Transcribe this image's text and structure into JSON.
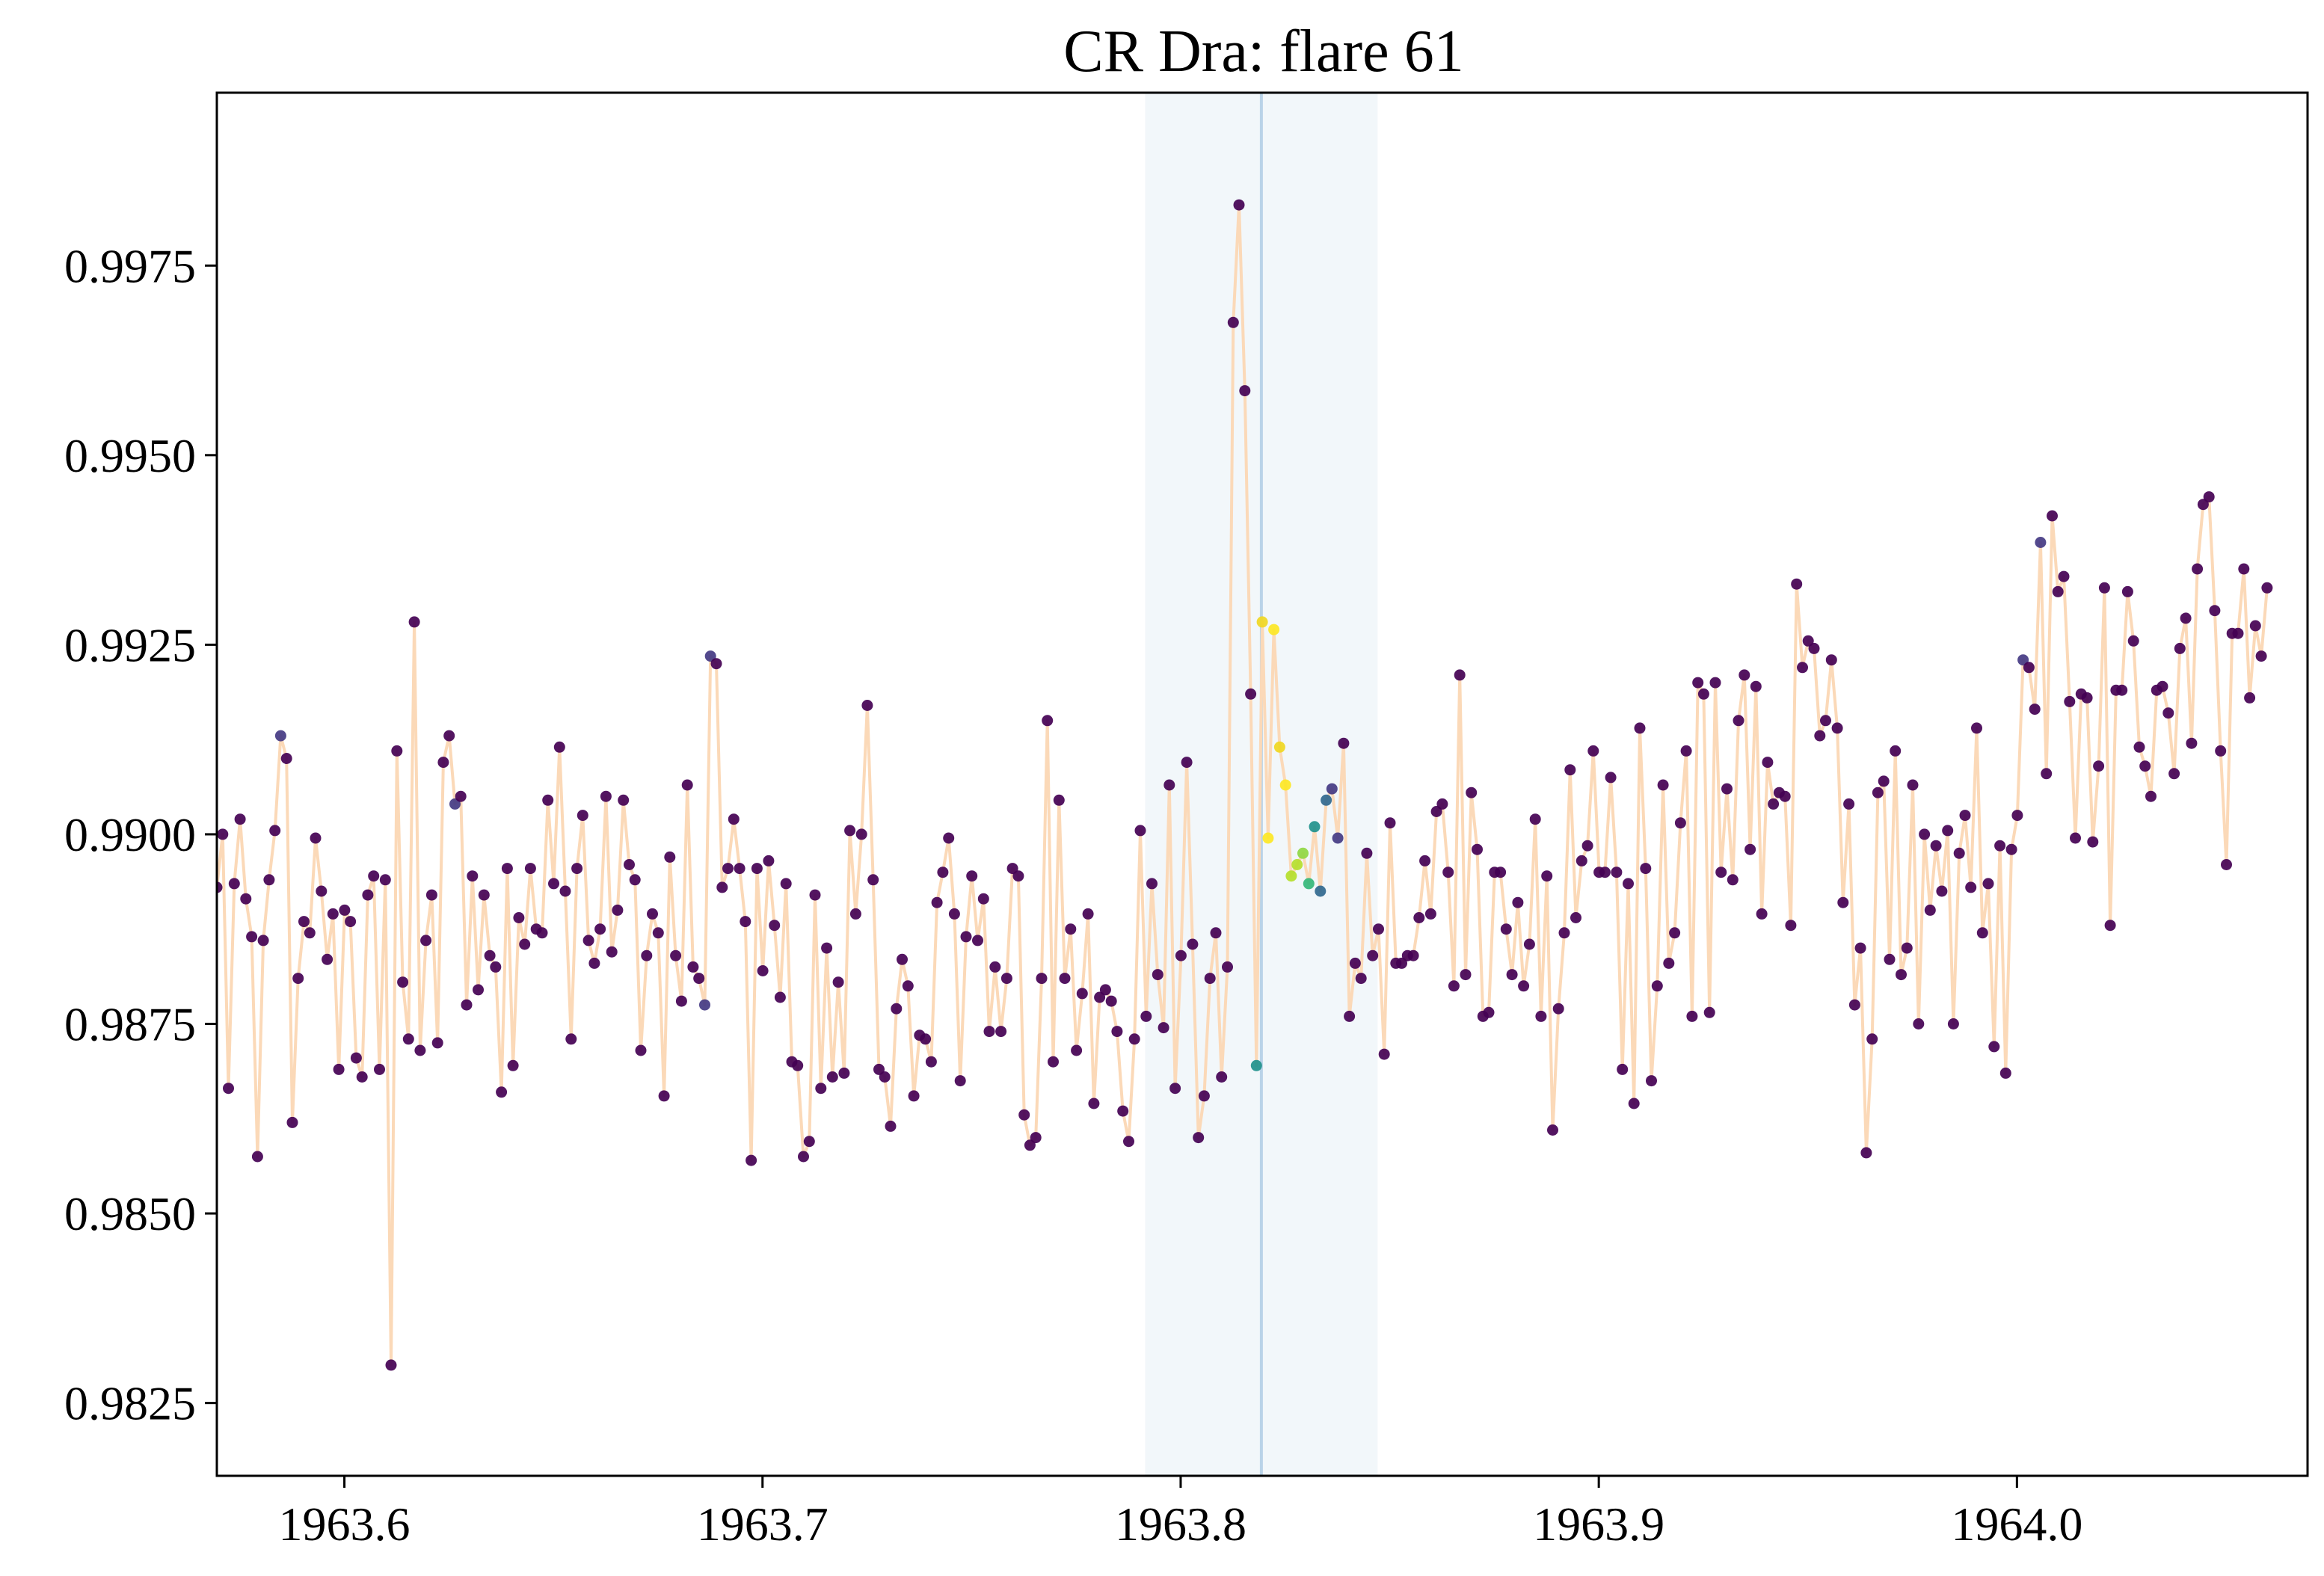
{
  "chart_data": {
    "type": "scatter",
    "title": "CR Dra: flare 61",
    "xlabel": "",
    "ylabel": "",
    "xlim": [
      1963.5695,
      1964.0695
    ],
    "ylim": [
      0.98154,
      0.99978
    ],
    "xticks": [
      1963.6,
      1963.7,
      1963.8,
      1963.9,
      1964.0
    ],
    "xtick_labels": [
      "1963.6",
      "1963.7",
      "1963.8",
      "1963.9",
      "1964.0"
    ],
    "yticks": [
      0.9825,
      0.985,
      0.9875,
      0.99,
      0.9925,
      0.995,
      0.9975
    ],
    "ytick_labels": [
      "0.9825",
      "0.9850",
      "0.9875",
      "0.9900",
      "0.9925",
      "0.9950",
      "0.9975"
    ],
    "grid": false,
    "flare_window": [
      1963.7915,
      1963.8471
    ],
    "flare_peak": 1963.8193,
    "line_color": "#fbd9b8",
    "colors": {
      "base": "#440154",
      "c1": "#443a83",
      "c2": "#31688e",
      "c3": "#21918c",
      "c4": "#35b779",
      "c5": "#90d743",
      "c6": "#b5de2b",
      "c7": "#fde725",
      "c8": "#f0d722"
    },
    "series": [
      {
        "x0": 1963.5695,
        "dx": 0.001389,
        "y": [
          0.9893,
          0.99,
          0.98665,
          0.98935,
          0.9902,
          0.98915,
          0.98865,
          0.98575,
          0.9886,
          0.9894,
          0.99005,
          0.9913,
          0.991,
          0.9862,
          0.9881,
          0.98885,
          0.9887,
          0.98995,
          0.98925,
          0.98835,
          0.98895,
          0.9869,
          0.989,
          0.98885,
          0.98705,
          0.9868,
          0.9892,
          0.98945,
          0.9869,
          0.9894,
          0.983,
          0.9911,
          0.98805,
          0.9873,
          0.9928,
          0.98715,
          0.9886,
          0.9892,
          0.98725,
          0.99095,
          0.9913,
          0.9904,
          0.9905,
          0.98775,
          0.98945,
          0.98795,
          0.9892,
          0.9884,
          0.98825,
          0.9866,
          0.98955,
          0.98695,
          0.9889,
          0.98855,
          0.98955,
          0.98875,
          0.9887,
          0.99045,
          0.98935,
          0.99115,
          0.98925,
          0.9873,
          0.98955,
          0.99025,
          0.9886,
          0.9883,
          0.98875,
          0.9905,
          0.98845,
          0.989,
          0.99045,
          0.9896,
          0.9894,
          0.98715,
          0.9884,
          0.98895,
          0.9887,
          0.98655,
          0.9897,
          0.9884,
          0.9878,
          0.99065,
          0.98825,
          0.9881,
          0.98775,
          0.99235,
          0.99225,
          0.9893,
          0.98955,
          0.9902,
          0.98955,
          0.98885,
          0.9857,
          0.98955,
          0.9882,
          0.98965,
          0.9888,
          0.98785,
          0.98935,
          0.987,
          0.98695,
          0.98575,
          0.98595,
          0.9892,
          0.98665,
          0.9885,
          0.9868,
          0.98805,
          0.98685,
          0.99005,
          0.98895,
          0.99,
          0.9917,
          0.9894,
          0.9869,
          0.9868,
          0.98615,
          0.9877,
          0.98835,
          0.988,
          0.98655,
          0.98735,
          0.9873,
          0.987,
          0.9891,
          0.9895,
          0.98995,
          0.98895,
          0.98675,
          0.98865,
          0.98945,
          0.9886,
          0.98915,
          0.9874,
          0.98825,
          0.9874,
          0.9881,
          0.98955,
          0.98945,
          0.9863,
          0.9859,
          0.986,
          0.9881,
          0.9915,
          0.987,
          0.99045,
          0.9881,
          0.98875,
          0.98715,
          0.9879,
          0.98895,
          0.98645,
          0.98785,
          0.98795,
          0.9878,
          0.9874,
          0.98635,
          0.98595,
          0.9873,
          0.99005,
          0.9876,
          0.98935,
          0.98815,
          0.98745,
          0.99065,
          0.98665,
          0.9884,
          0.99095,
          0.98855,
          0.986,
          0.98655,
          0.9881,
          0.9887,
          0.9868,
          0.98825,
          0.99675,
          0.9983,
          0.99585,
          0.99185,
          0.98695,
          0.9928,
          0.98995,
          0.9927,
          0.99115,
          0.99065,
          0.98945,
          0.9896,
          0.98975,
          0.98935,
          0.9901,
          0.98925,
          0.99045,
          0.9906,
          0.98995,
          0.9912,
          0.9876,
          0.9883,
          0.9881,
          0.98975,
          0.9884,
          0.98875,
          0.9871,
          0.99015,
          0.9883,
          0.9883,
          0.9884,
          0.9884,
          0.9889,
          0.98965,
          0.98895,
          0.9903,
          0.9904,
          0.9895,
          0.988,
          0.9921,
          0.98815,
          0.99055,
          0.9898,
          0.9876,
          0.98765,
          0.9895,
          0.9895,
          0.98875,
          0.98815,
          0.9891,
          0.988,
          0.98855,
          0.9902,
          0.9876,
          0.98945,
          0.9861,
          0.9877,
          0.9887,
          0.99085,
          0.9889,
          0.98965,
          0.98985,
          0.9911,
          0.9895,
          0.9895,
          0.99075,
          0.9895,
          0.9869,
          0.98935,
          0.98645,
          0.9914,
          0.98955,
          0.98675,
          0.988,
          0.99065,
          0.9883,
          0.9887,
          0.99015,
          0.9911,
          0.9876,
          0.992,
          0.99185,
          0.98765,
          0.992,
          0.9895,
          0.9906,
          0.9894,
          0.9915,
          0.9921,
          0.9898,
          0.99195,
          0.98895,
          0.99095,
          0.9904,
          0.99055,
          0.9905,
          0.9888,
          0.9933,
          0.9922,
          0.99255,
          0.99245,
          0.9913,
          0.9915,
          0.9923,
          0.9914,
          0.9891,
          0.9904,
          0.98775,
          0.9885,
          0.9858,
          0.9873,
          0.99055,
          0.9907,
          0.98835,
          0.9911,
          0.98815,
          0.9885,
          0.99065,
          0.9875,
          0.99,
          0.989,
          0.98985,
          0.98925,
          0.99005,
          0.9875,
          0.98975,
          0.99025,
          0.9893,
          0.9914,
          0.9887,
          0.98935,
          0.9872,
          0.98985,
          0.98685,
          0.9898,
          0.99025,
          0.9923,
          0.9922,
          0.99165,
          0.99385,
          0.9908,
          0.9942,
          0.9932,
          0.9934,
          0.99175,
          0.98995,
          0.99185,
          0.9918,
          0.9899,
          0.9909,
          0.99325,
          0.9888,
          0.9919,
          0.9919,
          0.9932,
          0.99255,
          0.99115,
          0.9909,
          0.9905,
          0.9919,
          0.99195,
          0.9916,
          0.9908,
          0.99245,
          0.99285,
          0.9912,
          0.9935,
          0.99435,
          0.99445,
          0.99295,
          0.9911,
          0.9896,
          0.99265,
          0.99265,
          0.9935,
          0.9918,
          0.99275,
          0.99235,
          0.99325
        ],
        "point_colors": {
          "11": "c1",
          "41": "c1",
          "84": "c1",
          "85": "c1",
          "179": "c3",
          "180": "c8",
          "181": "c7",
          "182": "c7",
          "183": "c8",
          "184": "c7",
          "185": "c6",
          "186": "c6",
          "187": "c5",
          "188": "c4",
          "189": "c3",
          "190": "c2",
          "191": "c2",
          "192": "c1",
          "193": "c1",
          "311": "c1",
          "314": "c1"
        }
      }
    ]
  }
}
